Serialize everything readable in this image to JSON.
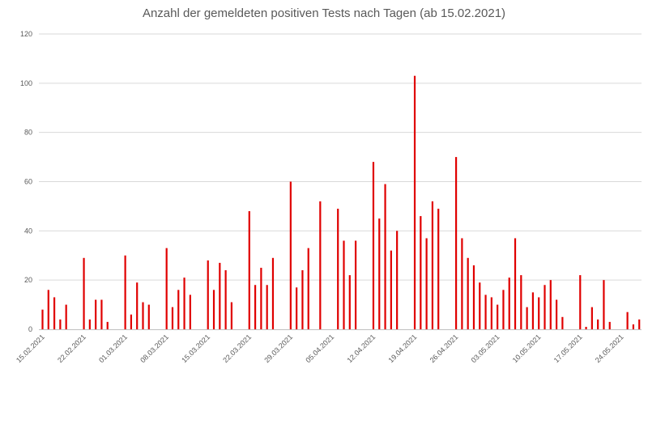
{
  "chart_data": {
    "type": "bar",
    "title": "Anzahl der gemeldeten positiven Tests nach Tagen (ab 15.02.2021)",
    "xlabel": "",
    "ylabel": "",
    "ylim": [
      0,
      120
    ],
    "yticks": [
      0,
      20,
      40,
      60,
      80,
      100,
      120
    ],
    "grid": true,
    "legend": "none",
    "bar_color": "#e00000",
    "x_tick_labels": [
      "15.02.2021",
      "22.02.2021",
      "01.03.2021",
      "08.03.2021",
      "15.03.2021",
      "22.03.2021",
      "29.03.2021",
      "05.04.2021",
      "12.04.2021",
      "19.04.2021",
      "26.04.2021",
      "03.05.2021",
      "10.05.2021",
      "17.05.2021",
      "24.05.2021"
    ],
    "categories": [
      "15.02.2021",
      "16.02.2021",
      "17.02.2021",
      "18.02.2021",
      "19.02.2021",
      "20.02.2021",
      "21.02.2021",
      "22.02.2021",
      "23.02.2021",
      "24.02.2021",
      "25.02.2021",
      "26.02.2021",
      "27.02.2021",
      "28.02.2021",
      "01.03.2021",
      "02.03.2021",
      "03.03.2021",
      "04.03.2021",
      "05.03.2021",
      "06.03.2021",
      "07.03.2021",
      "08.03.2021",
      "09.03.2021",
      "10.03.2021",
      "11.03.2021",
      "12.03.2021",
      "13.03.2021",
      "14.03.2021",
      "15.03.2021",
      "16.03.2021",
      "17.03.2021",
      "18.03.2021",
      "19.03.2021",
      "20.03.2021",
      "21.03.2021",
      "22.03.2021",
      "23.03.2021",
      "24.03.2021",
      "25.03.2021",
      "26.03.2021",
      "27.03.2021",
      "28.03.2021",
      "29.03.2021",
      "30.03.2021",
      "31.03.2021",
      "01.04.2021",
      "02.04.2021",
      "03.04.2021",
      "04.04.2021",
      "05.04.2021",
      "06.04.2021",
      "07.04.2021",
      "08.04.2021",
      "09.04.2021",
      "10.04.2021",
      "11.04.2021",
      "12.04.2021",
      "13.04.2021",
      "14.04.2021",
      "15.04.2021",
      "16.04.2021",
      "17.04.2021",
      "18.04.2021",
      "19.04.2021",
      "20.04.2021",
      "21.04.2021",
      "22.04.2021",
      "23.04.2021",
      "24.04.2021",
      "25.04.2021",
      "26.04.2021",
      "27.04.2021",
      "28.04.2021",
      "29.04.2021",
      "30.04.2021",
      "01.05.2021",
      "02.05.2021",
      "03.05.2021",
      "04.05.2021",
      "05.05.2021",
      "06.05.2021",
      "07.05.2021",
      "08.05.2021",
      "09.05.2021",
      "10.05.2021",
      "11.05.2021",
      "12.05.2021",
      "13.05.2021",
      "14.05.2021",
      "15.05.2021",
      "16.05.2021",
      "17.05.2021",
      "18.05.2021",
      "19.05.2021",
      "20.05.2021",
      "21.05.2021",
      "22.05.2021",
      "23.05.2021",
      "24.05.2021",
      "25.05.2021",
      "26.05.2021",
      "27.05.2021"
    ],
    "values": [
      8,
      16,
      13,
      4,
      10,
      0,
      0,
      29,
      4,
      12,
      12,
      3,
      0,
      0,
      30,
      6,
      19,
      11,
      10,
      0,
      0,
      33,
      9,
      16,
      21,
      14,
      0,
      0,
      28,
      16,
      27,
      24,
      11,
      0,
      0,
      48,
      18,
      25,
      18,
      29,
      0,
      0,
      60,
      17,
      24,
      33,
      0,
      52,
      0,
      0,
      49,
      36,
      22,
      36,
      0,
      0,
      68,
      45,
      59,
      32,
      40,
      0,
      0,
      103,
      46,
      37,
      52,
      49,
      0,
      0,
      70,
      37,
      29,
      26,
      19,
      14,
      13,
      10,
      16,
      21,
      37,
      22,
      9,
      15,
      13,
      18,
      20,
      12,
      5,
      0,
      0,
      22,
      1,
      9,
      4,
      20,
      3,
      0,
      0,
      7,
      2,
      4
    ]
  }
}
